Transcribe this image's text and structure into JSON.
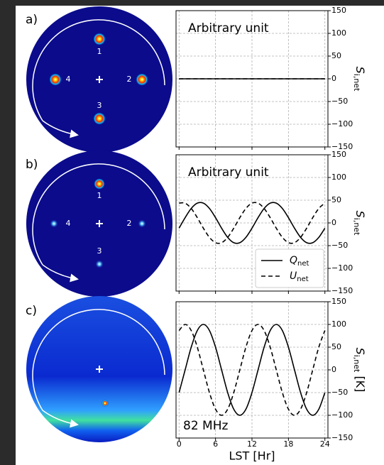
{
  "panel_labels": [
    "a)",
    "b)",
    "c)"
  ],
  "sky_labels": [
    "1",
    "2",
    "3",
    "4"
  ],
  "chart_data": [
    {
      "type": "line",
      "annotation": "Arbitrary unit",
      "ylabel_symbol": "S",
      "ylabel_subscript": "i,net",
      "x": [
        0,
        24
      ],
      "series": [
        {
          "color": "#000000",
          "linestyle": "solid",
          "values": [
            0,
            0
          ]
        },
        {
          "color": "#000000",
          "linestyle": "dashed",
          "values": [
            0,
            0
          ]
        }
      ],
      "xlim": [
        -0.5,
        24.5
      ],
      "xticks": [
        0,
        6,
        12,
        18,
        24
      ],
      "xtick_labels": false,
      "ylim": [
        -150,
        150
      ],
      "yticks": [
        {
          "value": -150,
          "label": "−150"
        },
        {
          "value": -100,
          "label": "−100"
        },
        {
          "value": -50,
          "label": "−50"
        },
        0,
        50,
        100,
        150
      ],
      "grid": true
    },
    {
      "type": "line",
      "annotation": "Arbitrary unit",
      "ylabel_symbol": "S",
      "ylabel_subscript": "i,net",
      "x": [
        0,
        1,
        2,
        3,
        4,
        5,
        6,
        7,
        8,
        9,
        10,
        11,
        12,
        13,
        14,
        15,
        16,
        17,
        18,
        19,
        20,
        21,
        22,
        23,
        24
      ],
      "series": [
        {
          "name": "Q",
          "subscript": "net",
          "color": "#000000",
          "linestyle": "solid",
          "values": [
            -11.6,
            11.6,
            31.8,
            43.5,
            43.5,
            31.8,
            11.6,
            -11.6,
            -31.8,
            -43.5,
            -43.5,
            -31.8,
            -11.6,
            11.6,
            31.8,
            43.5,
            43.5,
            31.8,
            11.6,
            -11.6,
            -31.8,
            -43.5,
            -43.5,
            -31.8,
            -11.6
          ]
        },
        {
          "name": "U",
          "subscript": "net",
          "color": "#000000",
          "linestyle": "dashed",
          "values": [
            43.5,
            43.5,
            31.8,
            11.6,
            -11.6,
            -31.8,
            -43.5,
            -43.5,
            -31.8,
            -11.6,
            11.6,
            31.8,
            43.5,
            43.5,
            31.8,
            11.6,
            -11.6,
            -31.8,
            -43.5,
            -43.5,
            -31.8,
            -11.6,
            11.6,
            31.8,
            43.5
          ]
        }
      ],
      "legend": "lower right",
      "xlim": [
        -0.5,
        24.5
      ],
      "xticks": [
        0,
        6,
        12,
        18,
        24
      ],
      "xtick_labels": false,
      "ylim": [
        -150,
        150
      ],
      "yticks": [
        {
          "value": -150,
          "label": "−150"
        },
        {
          "value": -100,
          "label": "−100"
        },
        {
          "value": -50,
          "label": "−50"
        },
        0,
        50,
        100,
        150
      ],
      "grid": true
    },
    {
      "type": "line",
      "annotation": "82 MHz",
      "ylabel_symbol": "S",
      "ylabel_subscript": "i,net",
      "ylabel_unit": "[K]",
      "xlabel": "LST [Hr]",
      "x": [
        0,
        1,
        2,
        3,
        4,
        5,
        6,
        7,
        8,
        9,
        10,
        11,
        12,
        13,
        14,
        15,
        16,
        17,
        18,
        19,
        20,
        21,
        22,
        23,
        24
      ],
      "series": [
        {
          "color": "#000000",
          "linestyle": "solid",
          "values": [
            -50,
            0,
            50,
            86.6,
            100,
            86.6,
            50,
            0,
            -50,
            -86.6,
            -100,
            -86.6,
            -50,
            0,
            50,
            86.6,
            100,
            86.6,
            50,
            0,
            -50,
            -86.6,
            -100,
            -86.6,
            -50
          ]
        },
        {
          "color": "#000000",
          "linestyle": "dashed",
          "values": [
            86.6,
            100,
            86.6,
            50,
            0,
            -50,
            -86.6,
            -100,
            -86.6,
            -50,
            0,
            50,
            86.6,
            100,
            86.6,
            50,
            0,
            -50,
            -86.6,
            -100,
            -86.6,
            -50,
            0,
            50,
            86.6
          ]
        }
      ],
      "xlim": [
        -0.5,
        24.5
      ],
      "xticks": [
        0,
        6,
        12,
        18,
        24
      ],
      "xtick_labels": true,
      "ylim": [
        -150,
        150
      ],
      "yticks": [
        {
          "value": -150,
          "label": "−150"
        },
        {
          "value": -100,
          "label": "−100"
        },
        {
          "value": -50,
          "label": "−50"
        },
        0,
        50,
        100,
        150
      ],
      "grid": true
    }
  ]
}
